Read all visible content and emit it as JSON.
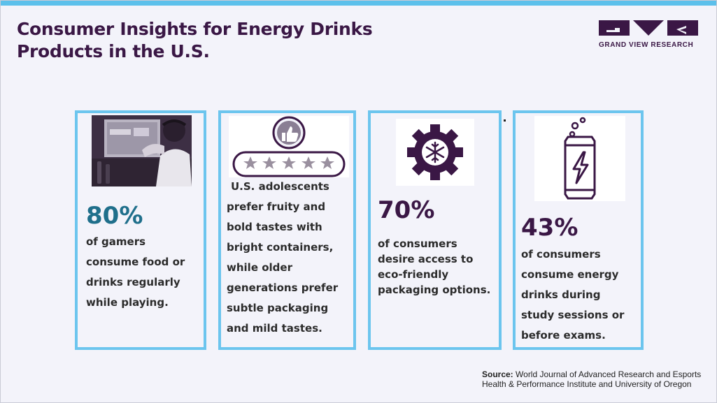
{
  "header": {
    "title_line1": "Consumer Insights for Energy Drinks",
    "title_line2": "Products in the U.S."
  },
  "logo": {
    "brand_text": "GRAND VIEW RESEARCH",
    "color": "#3a1745"
  },
  "cards": [
    {
      "stat": "80%",
      "stat_color": "#1f6f8b",
      "description": "of gamers consume food or drinks regularly while playing.",
      "icon": "gamer-photo"
    },
    {
      "stat": "",
      "description": "U.S. adolescents prefer fruity and bold tastes with bright containers, while older generations prefer subtle packaging and mild tastes.",
      "icon": "thumbs-up-rating-icon",
      "rating_stars": 5
    },
    {
      "stat": "70%",
      "stat_color": "#3a1745",
      "description": "of consumers desire access to eco-friendly packaging options.",
      "icon": "gear-snowflake-icon"
    },
    {
      "stat": "43%",
      "stat_color": "#3a1745",
      "description": "of consumers consume energy drinks during study sessions or before exams.",
      "icon": "energy-drink-can-icon"
    }
  ],
  "footer": {
    "source_label": "Source:",
    "source_text": "World Journal of Advanced Research and Esports Health & Performance Institute and University of Oregon"
  },
  "colors": {
    "accent": "#5cc0eb",
    "card_border": "#6cc5ee",
    "purple": "#3a1745",
    "teal": "#1f6f8b",
    "background": "#f3f3fa"
  }
}
